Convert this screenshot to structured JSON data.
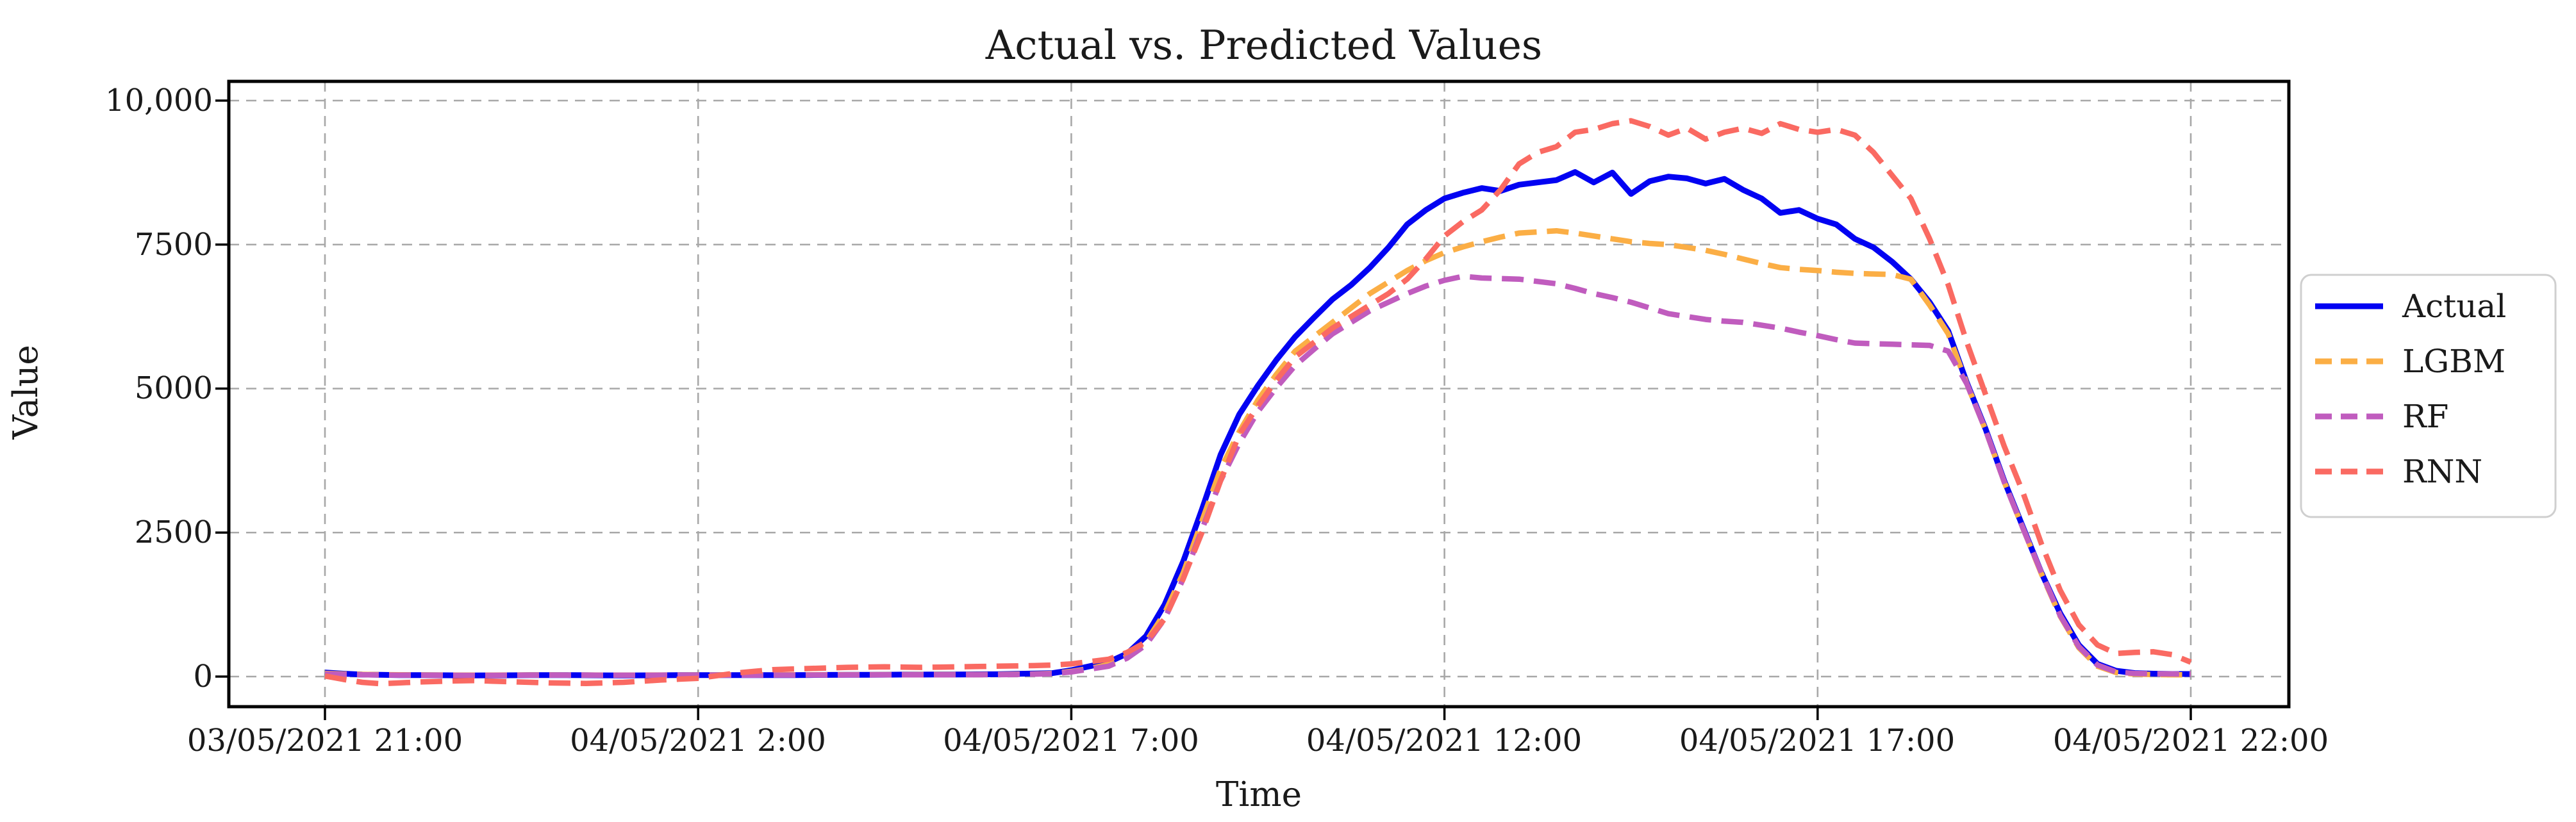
{
  "chart_data": {
    "type": "line",
    "title": "Actual vs. Predicted Values",
    "xlabel": "Time",
    "ylabel": "Value",
    "grid": true,
    "legend_position": "outside-right",
    "x_axis": {
      "start": "03/05/2021 21:00",
      "end": "04/05/2021 22:00",
      "step_hours": 0.25,
      "tick_hours": [
        0,
        5,
        10,
        15,
        20,
        25
      ],
      "tick_labels": [
        "03/05/2021 21:00",
        "04/05/2021 2:00",
        "04/05/2021 7:00",
        "04/05/2021 12:00",
        "04/05/2021 17:00",
        "04/05/2021 22:00"
      ]
    },
    "y_ticks": [
      {
        "value": 0,
        "label": "0"
      },
      {
        "value": 2500,
        "label": "2500"
      },
      {
        "value": 5000,
        "label": "5000"
      },
      {
        "value": 7500,
        "label": "7500"
      },
      {
        "value": 10000,
        "label": "10,000"
      }
    ],
    "ylim": [
      -550,
      10330
    ],
    "colors": {
      "background": "#FFFFFF",
      "grid": "#A8A8A8",
      "spine": "#000000",
      "text": "#1A1A1A",
      "legend_border": "#CFCFCF"
    },
    "series": [
      {
        "name": "Actual",
        "color": "#0202F2",
        "style": "solid",
        "values": [
          70,
          50,
          35,
          30,
          25,
          24,
          23,
          21,
          20,
          21,
          22,
          24,
          25,
          24,
          23,
          21,
          20,
          21,
          22,
          24,
          25,
          25,
          25,
          25,
          25,
          26,
          27,
          29,
          30,
          31,
          32,
          34,
          35,
          36,
          37,
          39,
          40,
          47,
          53,
          60,
          110,
          180,
          250,
          400,
          700,
          1250,
          2000,
          2900,
          3850,
          4550,
          5050,
          5500,
          5900,
          6230,
          6550,
          6800,
          7100,
          7450,
          7850,
          8100,
          8300,
          8400,
          8480,
          8430,
          8540,
          8580,
          8620,
          8760,
          8580,
          8750,
          8380,
          8600,
          8680,
          8650,
          8560,
          8640,
          8450,
          8300,
          8050,
          8100,
          7950,
          7850,
          7600,
          7450,
          7200,
          6900,
          6500,
          6000,
          5100,
          4300,
          3400,
          2600,
          1800,
          1100,
          550,
          220,
          100,
          60,
          50,
          45,
          45
        ]
      },
      {
        "name": "LGBM",
        "color": "#FBAE45",
        "style": "dashed",
        "values": [
          55,
          45,
          38,
          33,
          30,
          28,
          27,
          26,
          25,
          26,
          27,
          28,
          28,
          27,
          27,
          26,
          26,
          26,
          27,
          27,
          28,
          28,
          29,
          29,
          30,
          30,
          31,
          31,
          32,
          32,
          33,
          33,
          34,
          34,
          35,
          35,
          36,
          40,
          45,
          55,
          90,
          140,
          210,
          350,
          600,
          1100,
          1800,
          2700,
          3600,
          4250,
          4800,
          5250,
          5650,
          5900,
          6150,
          6400,
          6650,
          6850,
          7050,
          7220,
          7360,
          7460,
          7550,
          7630,
          7700,
          7720,
          7740,
          7700,
          7650,
          7600,
          7550,
          7520,
          7500,
          7450,
          7400,
          7330,
          7250,
          7170,
          7100,
          7070,
          7050,
          7020,
          7000,
          6990,
          6980,
          6900,
          6450,
          5950,
          5080,
          4280,
          3380,
          2580,
          1780,
          1050,
          500,
          180,
          70,
          45,
          35,
          32,
          30
        ]
      },
      {
        "name": "RF",
        "color": "#C05CBE",
        "style": "dashed",
        "values": [
          45,
          38,
          32,
          28,
          25,
          24,
          23,
          22,
          21,
          22,
          23,
          24,
          25,
          24,
          24,
          23,
          23,
          23,
          24,
          24,
          25,
          25,
          26,
          26,
          27,
          27,
          28,
          28,
          29,
          29,
          30,
          30,
          31,
          31,
          32,
          32,
          33,
          37,
          42,
          50,
          80,
          130,
          180,
          320,
          550,
          1000,
          1700,
          2550,
          3400,
          4050,
          4600,
          5020,
          5400,
          5680,
          5950,
          6150,
          6350,
          6500,
          6650,
          6780,
          6880,
          6950,
          6920,
          6910,
          6900,
          6860,
          6820,
          6740,
          6650,
          6580,
          6500,
          6400,
          6300,
          6250,
          6200,
          6170,
          6150,
          6100,
          6050,
          5980,
          5920,
          5850,
          5790,
          5780,
          5770,
          5760,
          5750,
          5650,
          5080,
          4280,
          3380,
          2580,
          1800,
          1060,
          520,
          200,
          80,
          55,
          48,
          46,
          45
        ]
      },
      {
        "name": "RNN",
        "color": "#FA6A62",
        "style": "dashed",
        "values": [
          10,
          -50,
          -100,
          -125,
          -110,
          -95,
          -85,
          -75,
          -70,
          -80,
          -90,
          -100,
          -110,
          -115,
          -120,
          -110,
          -100,
          -80,
          -60,
          -45,
          -30,
          15,
          60,
          90,
          120,
          130,
          140,
          150,
          160,
          165,
          170,
          165,
          160,
          165,
          170,
          175,
          180,
          185,
          190,
          200,
          220,
          260,
          300,
          420,
          600,
          1000,
          1700,
          2500,
          3400,
          4200,
          4700,
          5150,
          5550,
          5800,
          6050,
          6250,
          6450,
          6650,
          6900,
          7250,
          7650,
          7900,
          8100,
          8450,
          8900,
          9100,
          9200,
          9450,
          9500,
          9600,
          9650,
          9550,
          9400,
          9520,
          9330,
          9450,
          9520,
          9430,
          9600,
          9500,
          9450,
          9500,
          9400,
          9100,
          8700,
          8300,
          7600,
          6800,
          5800,
          4900,
          4000,
          3200,
          2300,
          1500,
          900,
          550,
          400,
          420,
          430,
          380,
          250
        ]
      }
    ]
  }
}
